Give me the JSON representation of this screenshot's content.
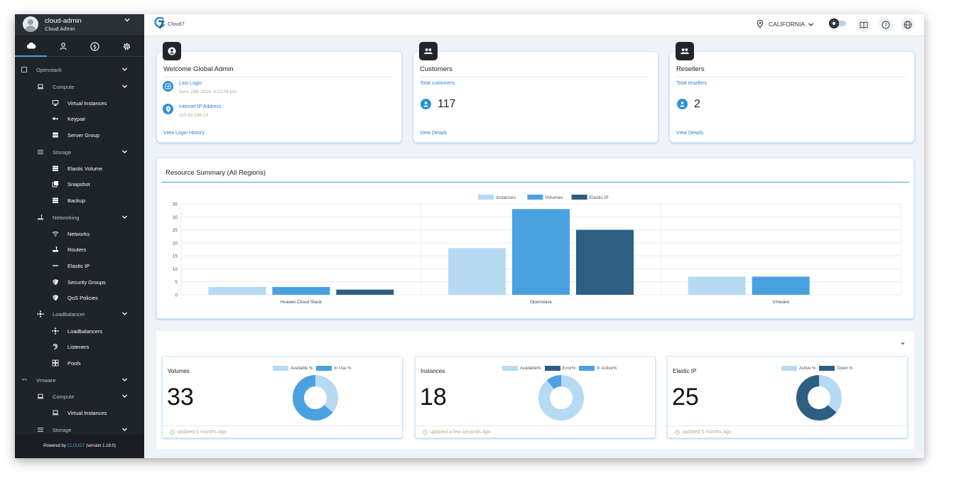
{
  "user": {
    "name": "cloud-admin",
    "role": "Cloud Admin"
  },
  "sidebar": {
    "tabs": [
      {
        "icon": "cloud-icon",
        "active": true
      },
      {
        "icon": "user-icon",
        "active": false
      },
      {
        "icon": "dollar-icon",
        "active": false
      },
      {
        "icon": "gear-icon",
        "active": false
      }
    ],
    "items": [
      {
        "label": "Openstack",
        "level": 0,
        "icon": "square-icon",
        "expandable": true
      },
      {
        "label": "Compute",
        "level": 1,
        "icon": "laptop-icon",
        "expandable": true
      },
      {
        "label": "Virtual Instances",
        "level": 2,
        "icon": "monitor-icon"
      },
      {
        "label": "Keypair",
        "level": 2,
        "icon": "key-icon"
      },
      {
        "label": "Server Group",
        "level": 2,
        "icon": "server-icon"
      },
      {
        "label": "Storage",
        "level": 1,
        "icon": "list-icon",
        "expandable": true
      },
      {
        "label": "Elastic Volume",
        "level": 2,
        "icon": "storage-icon"
      },
      {
        "label": "Snapshot",
        "level": 2,
        "icon": "snapshot-icon"
      },
      {
        "label": "Backup",
        "level": 2,
        "icon": "backup-icon"
      },
      {
        "label": "Networking",
        "level": 1,
        "icon": "network-icon",
        "expandable": true
      },
      {
        "label": "Networks",
        "level": 2,
        "icon": "wifi-icon"
      },
      {
        "label": "Routers",
        "level": 2,
        "icon": "router-icon"
      },
      {
        "label": "Elastic IP",
        "level": 2,
        "icon": "dash-icon"
      },
      {
        "label": "Security Groups",
        "level": 2,
        "icon": "shield-icon"
      },
      {
        "label": "QoS Policies",
        "level": 2,
        "icon": "shield-icon"
      },
      {
        "label": "Loadbalancer",
        "level": 1,
        "icon": "loadbalancer-icon",
        "expandable": true
      },
      {
        "label": "Loadbalancers",
        "level": 2,
        "icon": "loadbalancer-icon"
      },
      {
        "label": "Listeners",
        "level": 2,
        "icon": "ear-icon"
      },
      {
        "label": "Pools",
        "level": 2,
        "icon": "pool-icon"
      },
      {
        "label": "Vmware",
        "level": 0,
        "icon": "vm-icon",
        "icon_text": "vm",
        "expandable": true
      },
      {
        "label": "Compute",
        "level": 1,
        "icon": "laptop-icon",
        "expandable": true
      },
      {
        "label": "Virtual Instances",
        "level": 2,
        "icon": "laptop-icon"
      },
      {
        "label": "Storage",
        "level": 1,
        "icon": "list-icon",
        "expandable": true
      }
    ],
    "footer": {
      "prefix": "Powered by",
      "brand": "CLOUD7",
      "version": "(version 1.19.0)"
    }
  },
  "topbar": {
    "logo_text": "Cloud7",
    "region": "CALIFORNIA"
  },
  "welcome": {
    "title": "Welcome Global Admin",
    "last_login_label": "Last Login",
    "last_login_value": "June 28th 2024, 4:22:06 pm",
    "ip_label": "Internet IP Address",
    "ip_value": "110.93.236.19",
    "history_link": "View Login History"
  },
  "customers": {
    "title": "Customers",
    "subtitle": "Total customers",
    "count": "117",
    "link": "View Details"
  },
  "resellers": {
    "title": "Resellers",
    "subtitle": "Total resellers",
    "count": "2",
    "link": "View Details"
  },
  "resource_summary": {
    "title": "Resource Summary (All Regions)"
  },
  "chart_data": {
    "type": "bar",
    "categories": [
      "Huawei Cloud Stack",
      "Openstack",
      "Vmware"
    ],
    "series": [
      {
        "name": "Instances",
        "color": "#b7daf3",
        "values": [
          3,
          18,
          7
        ]
      },
      {
        "name": "Volumes",
        "color": "#4aa1df",
        "values": [
          3,
          33,
          7
        ]
      },
      {
        "name": "Elastic IP",
        "color": "#2c5f82",
        "values": [
          2,
          25,
          0
        ]
      }
    ],
    "yticks": [
      0,
      5,
      10,
      15,
      20,
      25,
      30,
      35
    ],
    "ylim": [
      0,
      35
    ],
    "legend": "top-center",
    "grid": true
  },
  "stats": {
    "volumes": {
      "title": "Volumes",
      "value": "33",
      "updated": "updated 5 months ago",
      "legend": [
        {
          "label": "Available %",
          "color": "#b7daf3"
        },
        {
          "label": "In Use %",
          "color": "#4aa1df"
        }
      ],
      "donut": [
        {
          "value": 36,
          "color": "#b7daf3"
        },
        {
          "value": 64,
          "color": "#4aa1df"
        }
      ]
    },
    "instances": {
      "title": "Instances",
      "value": "18",
      "updated": "updated a few seconds ago",
      "legend": [
        {
          "label": "Available%",
          "color": "#b7daf3"
        },
        {
          "label": "Error%",
          "color": "#2c5f82"
        },
        {
          "label": "In Active%",
          "color": "#4aa1df"
        }
      ],
      "donut": [
        {
          "value": 89,
          "color": "#b7daf3"
        },
        {
          "value": 0,
          "color": "#2c5f82"
        },
        {
          "value": 11,
          "color": "#4aa1df"
        }
      ]
    },
    "elastic_ip": {
      "title": "Elastic IP",
      "value": "25",
      "updated": "updated 5 months ago",
      "legend": [
        {
          "label": "Active %",
          "color": "#b7daf3"
        },
        {
          "label": "Down %",
          "color": "#2c5f82"
        }
      ],
      "donut": [
        {
          "value": 36,
          "color": "#b7daf3"
        },
        {
          "value": 64,
          "color": "#2c5f82"
        }
      ]
    }
  }
}
